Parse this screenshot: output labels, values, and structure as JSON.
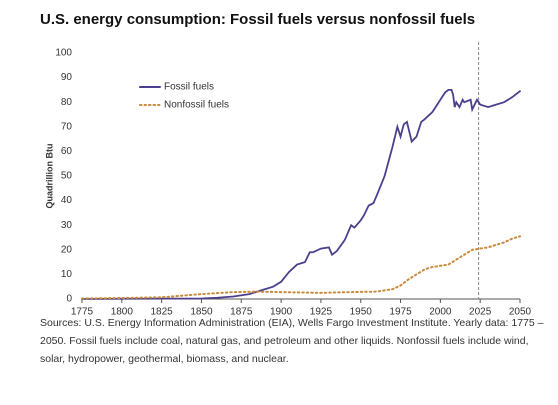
{
  "chart_data": {
    "type": "line",
    "title": "U.S. energy consumption: Fossil fuels versus nonfossil fuels",
    "y_label": "Quadrillion Btu",
    "source": "Sources: U.S. Energy Information Administration (EIA), Wells Fargo Investment Institute. Yearly data: 1775 – 2050. Fossil fuels include coal, natural gas, and petroleum and other liquids. Nonfossil fuels include wind, solar, hydropower, geothermal, biomass, and nuclear.",
    "xlim": [
      1775,
      2050
    ],
    "xticks": [
      1775,
      1800,
      1825,
      1850,
      1875,
      1900,
      1925,
      1950,
      1975,
      2000,
      2025,
      2050
    ],
    "ylim": [
      0,
      100
    ],
    "yticks": [
      0,
      10,
      20,
      30,
      40,
      50,
      60,
      70,
      80,
      90,
      100
    ],
    "vlines": [
      2024
    ],
    "series": [
      {
        "name": "Fossil fuels",
        "color": "#4b3f8e",
        "line_style": "solid",
        "x": [
          1775,
          1800,
          1850,
          1860,
          1870,
          1880,
          1885,
          1890,
          1895,
          1900,
          1905,
          1910,
          1915,
          1918,
          1920,
          1925,
          1930,
          1932,
          1935,
          1940,
          1944,
          1946,
          1950,
          1952,
          1955,
          1958,
          1960,
          1965,
          1970,
          1973,
          1975,
          1977,
          1979,
          1982,
          1985,
          1988,
          1990,
          1995,
          2000,
          2003,
          2005,
          2007,
          2008,
          2009,
          2010,
          2012,
          2014,
          2015,
          2019,
          2020,
          2023,
          2025,
          2030,
          2035,
          2040,
          2045,
          2050
        ],
        "values": [
          0,
          0.1,
          0.2,
          0.5,
          1,
          2,
          3,
          4,
          5,
          7,
          11,
          14,
          15,
          19,
          19,
          20.5,
          21,
          18,
          19.5,
          24,
          30,
          29,
          32,
          34,
          38,
          39,
          42,
          50,
          62,
          70,
          66,
          71,
          72,
          64,
          66,
          72,
          73,
          76,
          81,
          84,
          85,
          85,
          83,
          78,
          80,
          78,
          81,
          80,
          81,
          77,
          81,
          79,
          78,
          79,
          80,
          82,
          84.5
        ]
      },
      {
        "name": "Nonfossil fuels",
        "color": "#c98a3c",
        "line_style": "dotted",
        "x": [
          1775,
          1800,
          1825,
          1850,
          1870,
          1885,
          1900,
          1925,
          1950,
          1960,
          1970,
          1975,
          1980,
          1985,
          1990,
          1995,
          2000,
          2005,
          2010,
          2015,
          2020,
          2025,
          2030,
          2035,
          2040,
          2045,
          2050
        ],
        "values": [
          0.2,
          0.4,
          0.7,
          2,
          2.8,
          3,
          2.8,
          2.5,
          2.9,
          3,
          4,
          5.5,
          8,
          10,
          12,
          13,
          13.5,
          14,
          16,
          18,
          20,
          20.5,
          21,
          22,
          23,
          24.5,
          25.5
        ]
      }
    ]
  }
}
